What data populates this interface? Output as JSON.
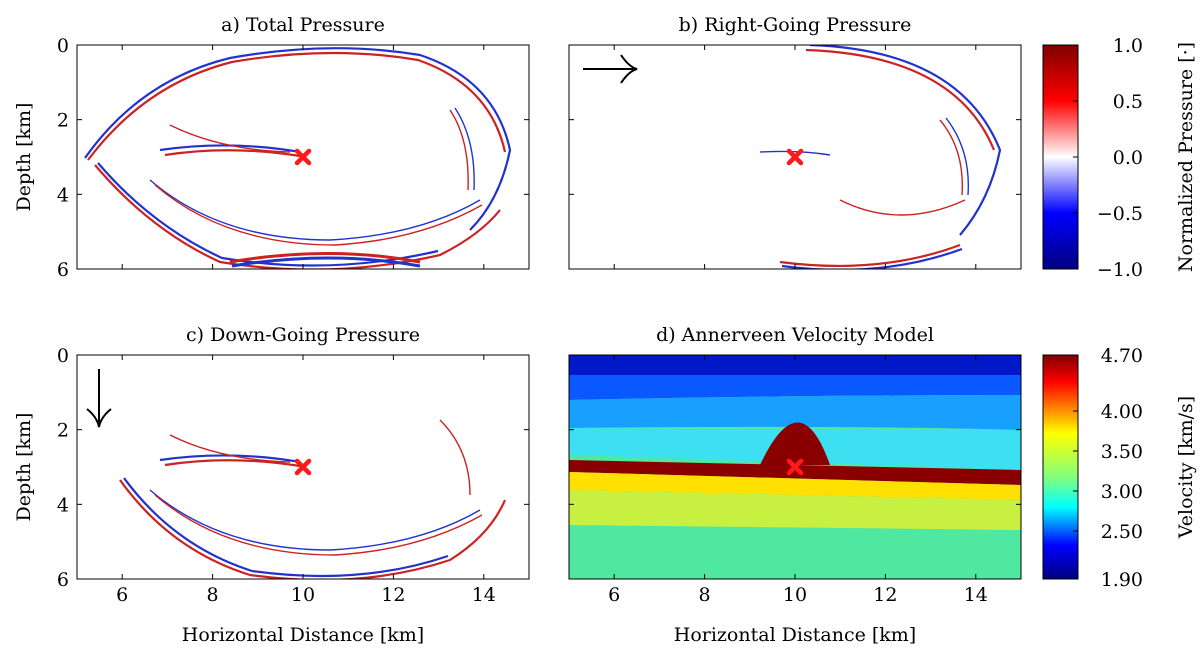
{
  "figure": {
    "xlabel": "Horizontal Distance [km]",
    "ylabel": "Depth [km]",
    "colorbars": [
      {
        "label": "Normalized Pressure [·]",
        "ticks": [
          "1.0",
          "0.5",
          "0.0",
          "−0.5",
          "−1.0"
        ],
        "tick_values": [
          1.0,
          0.5,
          0.0,
          -0.5,
          -1.0
        ]
      },
      {
        "label": "Velocity [km/s]",
        "ticks": [
          "4.70",
          "4.00",
          "3.50",
          "3.00",
          "2.50",
          "1.90"
        ],
        "tick_values": [
          4.7,
          4.0,
          3.5,
          3.0,
          2.5,
          1.9
        ]
      }
    ]
  },
  "chart_data": [
    {
      "type": "heatmap",
      "title": "a) Total Pressure",
      "xlim": [
        5,
        15
      ],
      "ylim": [
        0,
        6
      ],
      "y_inverted": true,
      "xticks": [
        6,
        8,
        10,
        12,
        14
      ],
      "yticks": [
        0,
        2,
        4,
        6
      ],
      "x_ticklabels_shown": false,
      "ylabel": "Depth [km]",
      "colormap": "seismic (blue-white-red)",
      "source_marker": {
        "x": 10,
        "y": 3,
        "color": "#ff1a1a"
      },
      "arrow": null
    },
    {
      "type": "heatmap",
      "title": "b) Right-Going Pressure",
      "xlim": [
        5,
        15
      ],
      "ylim": [
        0,
        6
      ],
      "y_inverted": true,
      "xticks": [
        6,
        8,
        10,
        12,
        14
      ],
      "yticks": [
        0,
        2,
        4,
        6
      ],
      "x_ticklabels_shown": false,
      "colormap": "seismic (blue-white-red)",
      "source_marker": {
        "x": 10,
        "y": 3,
        "color": "#ff1a1a"
      },
      "arrow": "right"
    },
    {
      "type": "heatmap",
      "title": "c) Down-Going Pressure",
      "xlim": [
        5,
        15
      ],
      "ylim": [
        0,
        6
      ],
      "y_inverted": true,
      "xticks": [
        6,
        8,
        10,
        12,
        14
      ],
      "yticks": [
        0,
        2,
        4,
        6
      ],
      "xlabel": "Horizontal Distance [km]",
      "ylabel": "Depth [km]",
      "colormap": "seismic (blue-white-red)",
      "source_marker": {
        "x": 10,
        "y": 3,
        "color": "#ff1a1a"
      },
      "arrow": "down"
    },
    {
      "type": "heatmap",
      "title": "d) Annerveen Velocity Model",
      "xlim": [
        5,
        15
      ],
      "ylim": [
        0,
        6
      ],
      "y_inverted": true,
      "xticks": [
        6,
        8,
        10,
        12,
        14
      ],
      "yticks": [
        0,
        2,
        4,
        6
      ],
      "xlabel": "Horizontal Distance [km]",
      "colormap": "jet",
      "value_range": [
        1.9,
        4.7
      ],
      "source_marker": {
        "x": 10,
        "y": 3,
        "color": "#ff1a1a"
      },
      "arrow": null
    }
  ]
}
